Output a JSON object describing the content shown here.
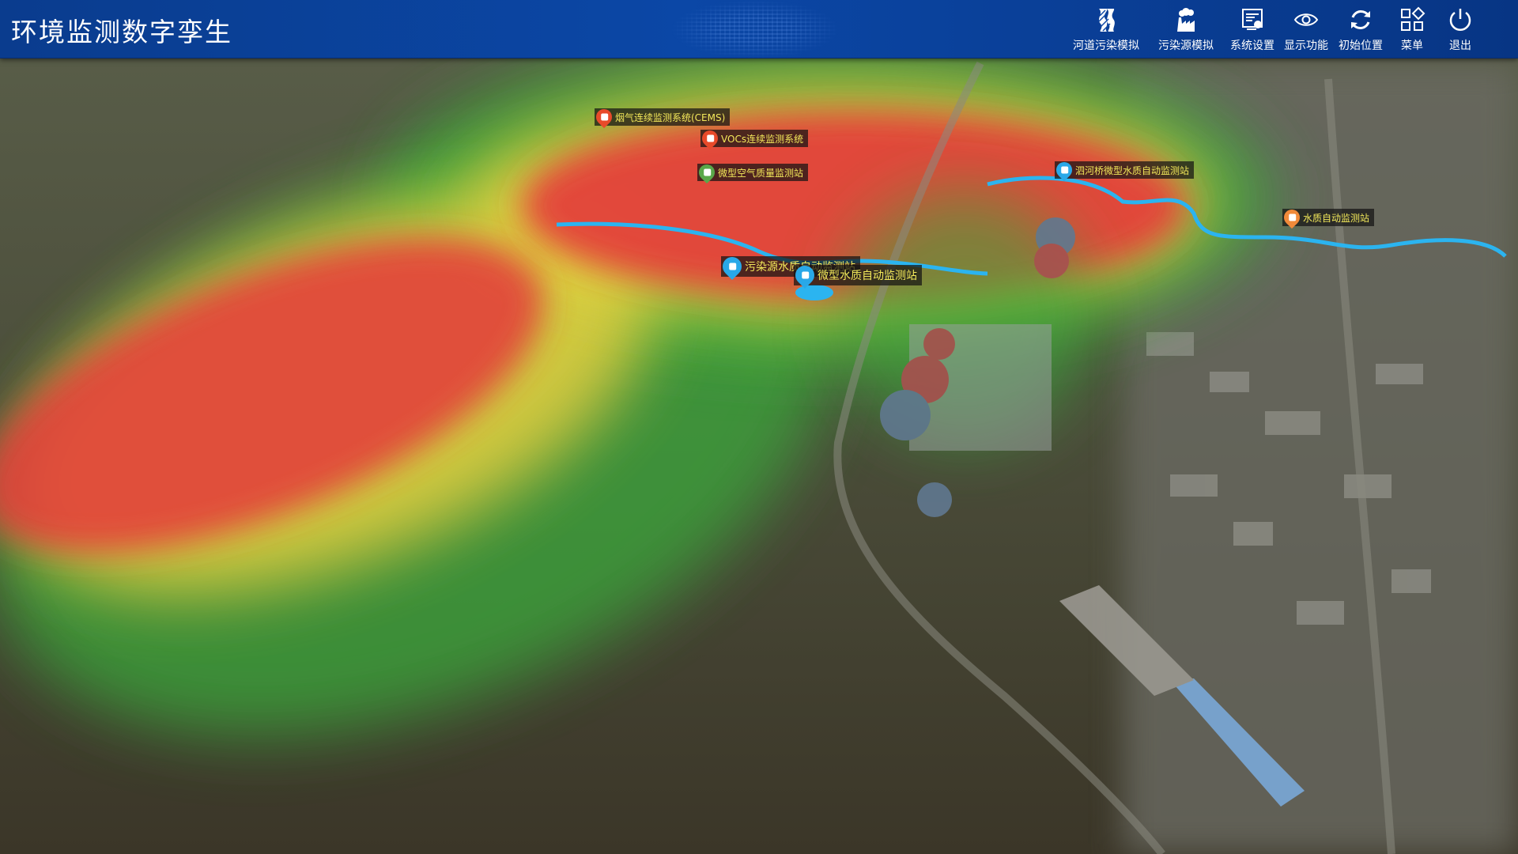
{
  "header": {
    "title": "环境监测数字孪生",
    "tools": [
      {
        "label": "河道污染模拟",
        "icon": "river-pollution-icon"
      },
      {
        "label": "污染源模拟",
        "icon": "factory-icon"
      },
      {
        "label": "系统设置",
        "icon": "settings-icon"
      },
      {
        "label": "显示功能",
        "icon": "eye-icon"
      },
      {
        "label": "初始位置",
        "icon": "refresh-icon"
      },
      {
        "label": "菜单",
        "icon": "menu-grid-icon"
      },
      {
        "label": "退出",
        "icon": "power-icon"
      }
    ]
  },
  "map": {
    "markers": [
      {
        "label": "烟气连续监测系统(CEMS)",
        "icon": "smoke-monitor-pin-icon",
        "color": "#e84a2a"
      },
      {
        "label": "VOCs连续监测系统",
        "icon": "vocs-monitor-pin-icon",
        "color": "#e84a2a"
      },
      {
        "label": "微型空气质量监测站",
        "icon": "air-quality-pin-icon",
        "color": "#5aa84a"
      },
      {
        "label": "泗河桥微型水质自动监测站",
        "icon": "water-quality-pin-icon",
        "color": "#29a8e8"
      },
      {
        "label": "水质自动监测站",
        "icon": "water-station-pin-icon",
        "color": "#f08a3a"
      },
      {
        "label": "污染源水质自动监测站",
        "icon": "water-quality-pin-icon",
        "color": "#29a8e8"
      },
      {
        "label": "微型水质自动监测站",
        "icon": "water-quality-pin-icon",
        "color": "#29a8e8"
      }
    ],
    "colors": {
      "heat_high": "#e43a3a",
      "heat_mid": "#e8d040",
      "heat_low": "#3aa83a",
      "river": "#2bb4f0"
    }
  }
}
